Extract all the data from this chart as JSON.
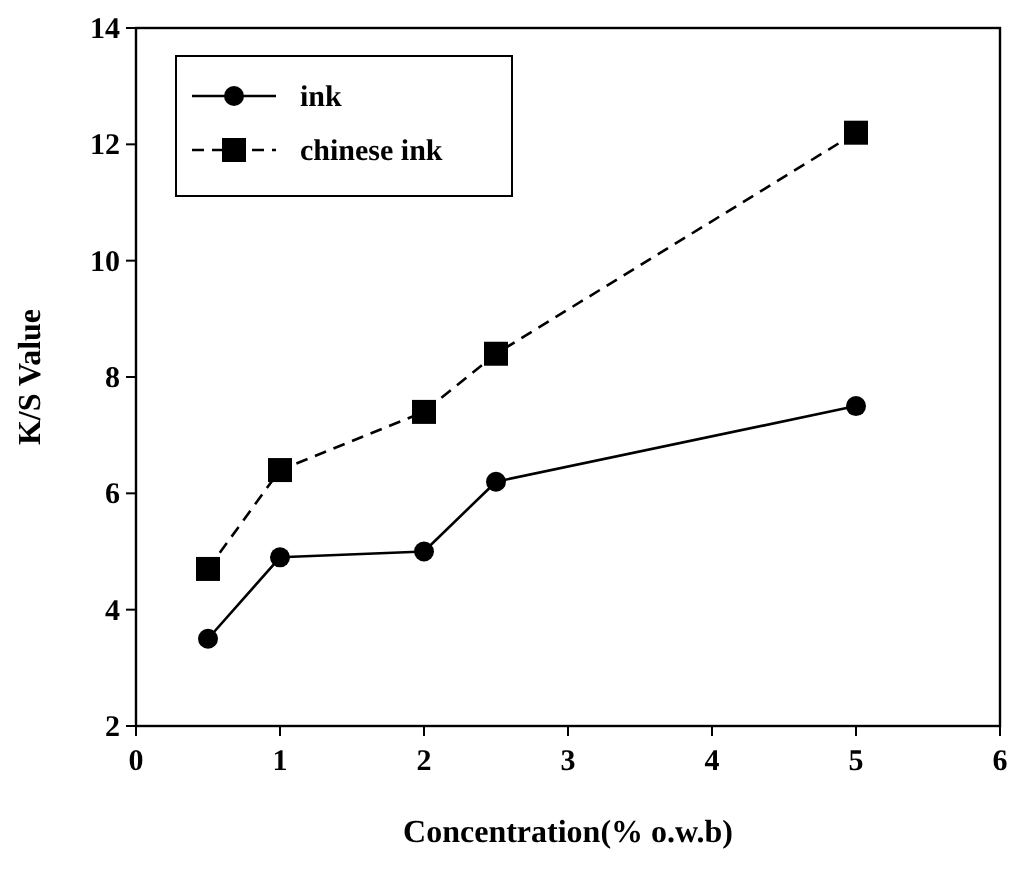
{
  "chart_data": {
    "type": "line",
    "xlabel": "Concentration(% o.w.b)",
    "ylabel": "K/S Value",
    "x": [
      0.5,
      1,
      2,
      2.5,
      5
    ],
    "series": [
      {
        "name": "ink",
        "color": "#000000",
        "values": [
          3.5,
          4.9,
          5.0,
          6.2,
          7.5
        ],
        "marker": "circle",
        "line_style": "solid"
      },
      {
        "name": "chinese ink",
        "color": "#000000",
        "values": [
          4.7,
          6.4,
          7.4,
          8.4,
          12.2
        ],
        "marker": "square",
        "line_style": "dashed"
      }
    ],
    "xlim": [
      0,
      6
    ],
    "xticks": [
      0,
      1,
      2,
      3,
      4,
      5,
      6
    ],
    "ylim": [
      2,
      14
    ],
    "yticks": [
      2,
      4,
      6,
      8,
      10,
      12,
      14
    ],
    "legend": "top left",
    "grid": false
  }
}
